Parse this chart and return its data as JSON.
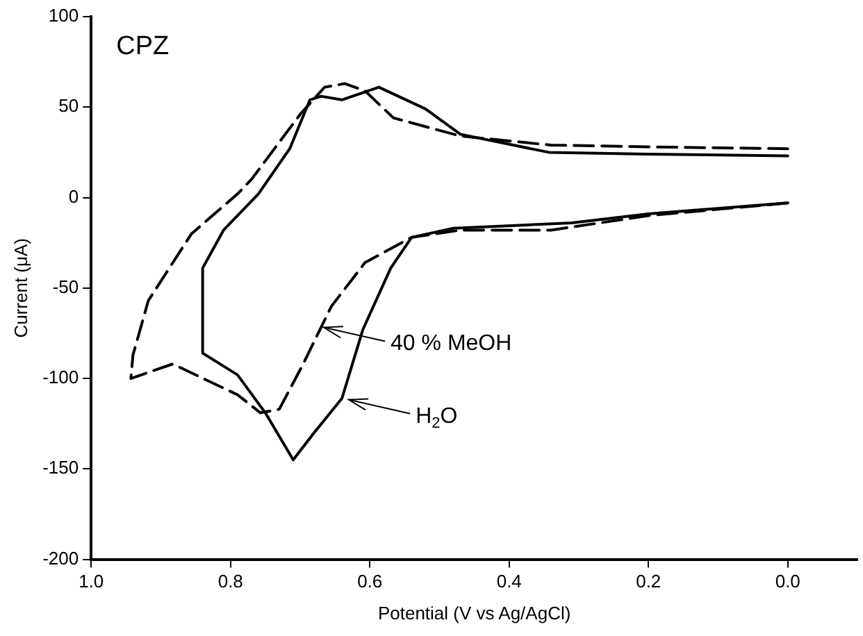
{
  "chart_data": {
    "type": "line",
    "xlabel": "Potential (V vs Ag/AgCl)",
    "ylabel": "Current (μA)",
    "xlim": [
      1.0,
      -0.1
    ],
    "ylim": [
      -200,
      100
    ],
    "xticks": [
      {
        "value": 1.0,
        "label": "1.0"
      },
      {
        "value": 0.8,
        "label": "0.8"
      },
      {
        "value": 0.6,
        "label": "0.6"
      },
      {
        "value": 0.4,
        "label": "0.4"
      },
      {
        "value": 0.2,
        "label": "0.2"
      },
      {
        "value": 0.0,
        "label": "0.0"
      }
    ],
    "yticks": [
      -200,
      -150,
      -100,
      -50,
      0,
      50,
      100
    ],
    "grid": false,
    "legend": false,
    "marker": "none",
    "series": [
      {
        "color": "#000000",
        "line_style": "solid",
        "x": [
          0.0,
          0.2,
          0.31,
          0.48,
          0.54,
          0.57,
          0.61,
          0.64,
          0.68,
          0.71,
          0.75,
          0.79,
          0.84,
          0.84,
          0.82,
          0.81,
          0.76,
          0.715,
          0.686,
          0.67,
          0.64,
          0.587,
          0.52,
          0.47,
          0.343,
          0.2,
          0.0
        ],
        "values": [
          -3,
          -9,
          -14,
          -17,
          -22,
          -39,
          -73,
          -111,
          -130,
          -145,
          -119,
          -98,
          -86,
          -39,
          -25,
          -18,
          2,
          27,
          54,
          56,
          54,
          61,
          49,
          35,
          25,
          24,
          23
        ]
      },
      {
        "color": "#000000",
        "line_style": "dashed",
        "x": [
          0.0,
          0.2,
          0.34,
          0.47,
          0.54,
          0.607,
          0.655,
          0.697,
          0.73,
          0.757,
          0.79,
          0.883,
          0.943,
          0.94,
          0.918,
          0.856,
          0.79,
          0.77,
          0.7,
          0.665,
          0.636,
          0.607,
          0.566,
          0.47,
          0.34,
          0.2,
          0.0
        ],
        "values": [
          -3,
          -10,
          -18,
          -18,
          -22,
          -36,
          -60,
          -93,
          -117,
          -119,
          -109,
          -92,
          -100,
          -87,
          -57,
          -20,
          2,
          10,
          46,
          61,
          63,
          59,
          44,
          34,
          29,
          28,
          27
        ]
      }
    ],
    "annotations": [
      "CPZ",
      {
        "text": "40 % MeOH",
        "x": 0.67,
        "y": -71
      },
      {
        "text": "H$_{2}$O",
        "x": 0.634,
        "y": -111
      }
    ]
  }
}
